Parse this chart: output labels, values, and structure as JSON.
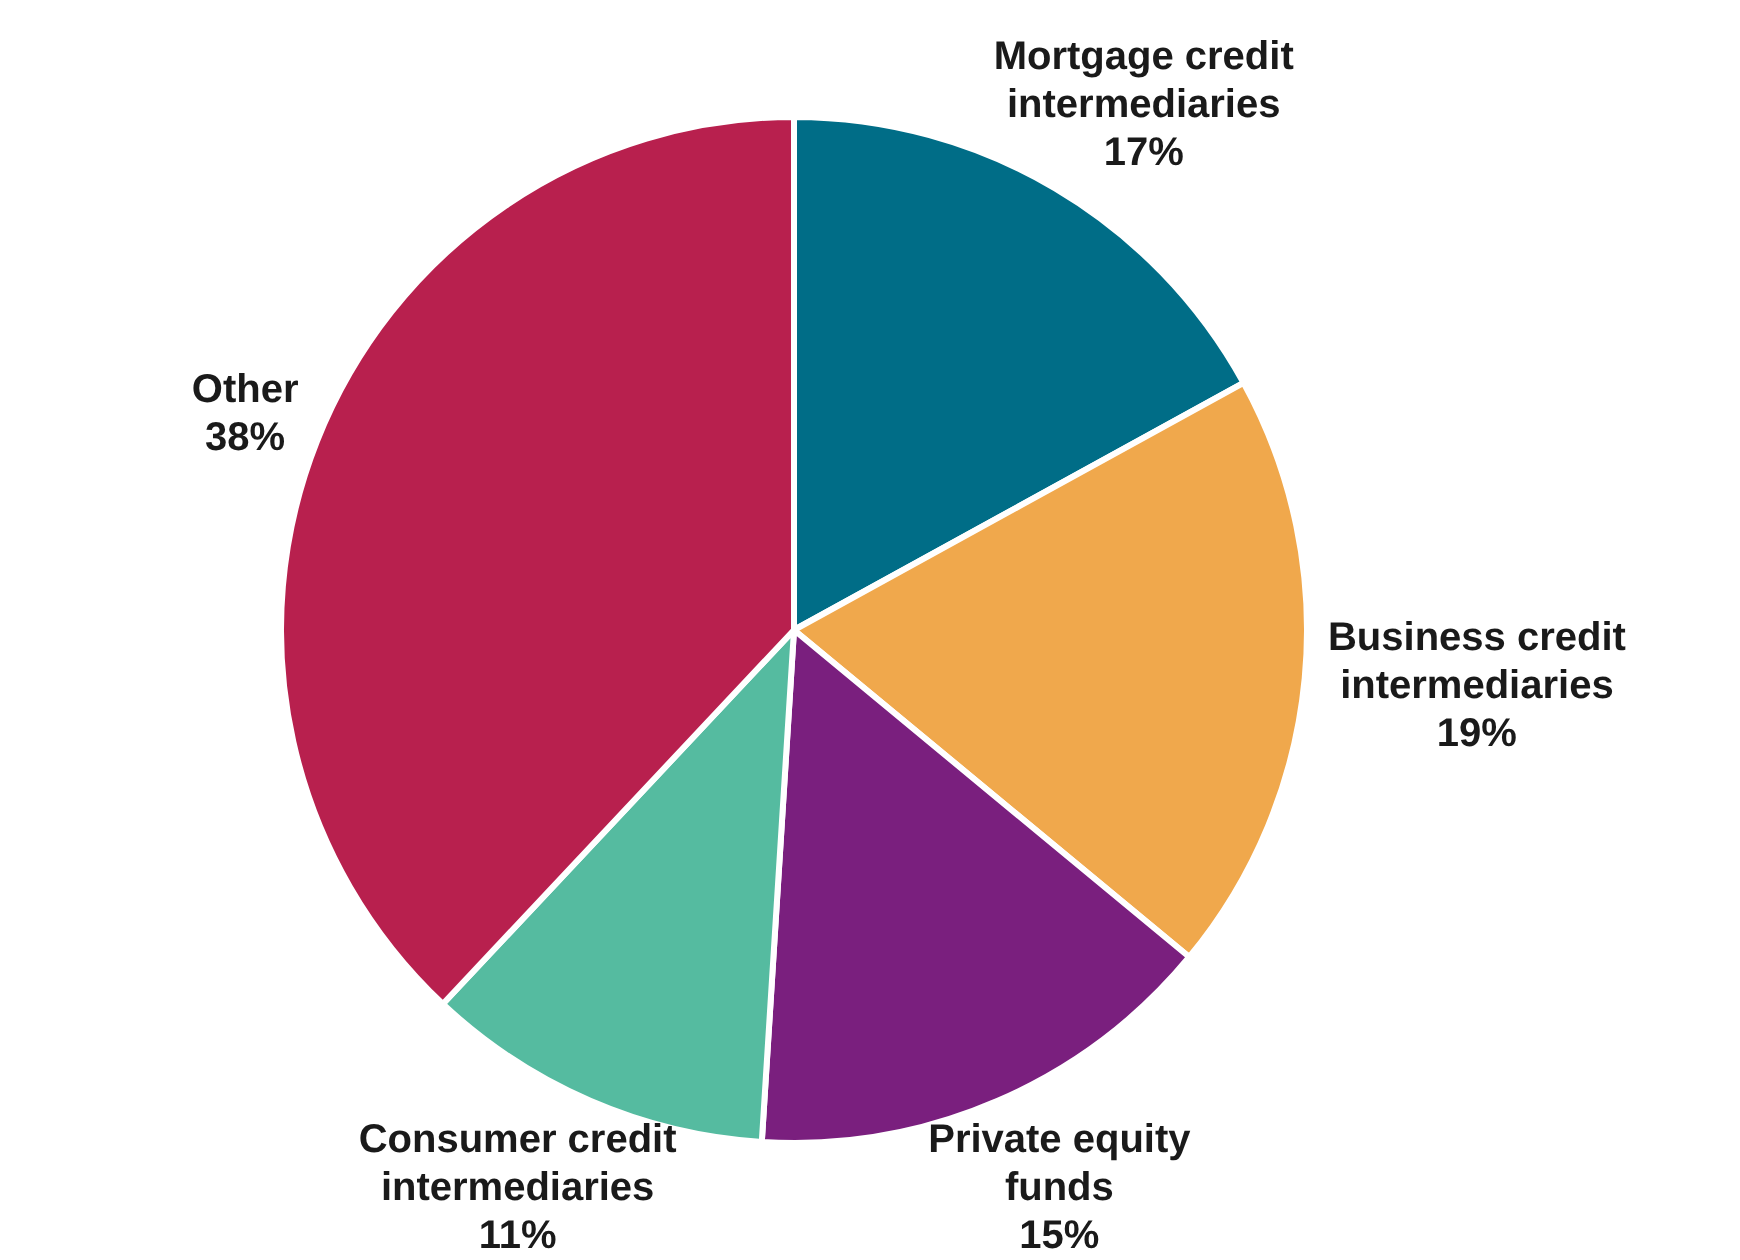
{
  "chart_data": {
    "type": "pie",
    "categories": [
      "Mortgage credit intermediaries",
      "Business credit intermediaries",
      "Private equity funds",
      "Consumer credit intermediaries",
      "Other"
    ],
    "values": [
      17,
      19,
      15,
      11,
      38
    ],
    "value_labels": [
      "17%",
      "19%",
      "15%",
      "11%",
      "38%"
    ],
    "colors": [
      "#006d87",
      "#f0a84c",
      "#7a1f7e",
      "#55bba0",
      "#b8204e"
    ],
    "legend": false
  }
}
